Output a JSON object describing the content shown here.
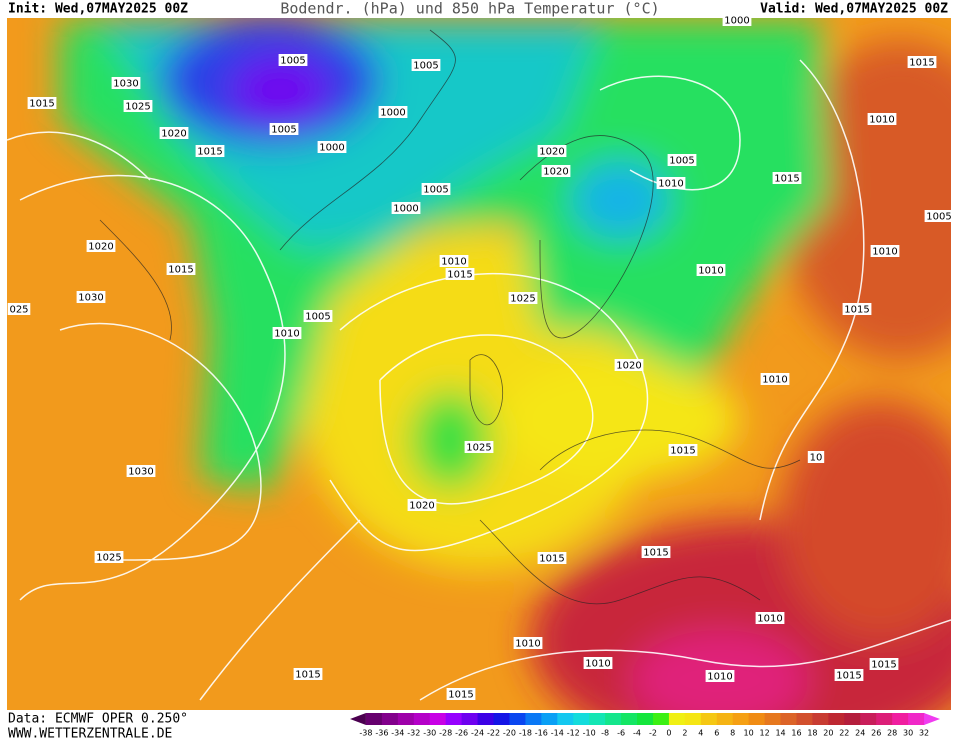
{
  "header": {
    "init": "Init: Wed,07MAY2025 00Z",
    "title": "Bodendr. (hPa) und 850 hPa Temperatur (°C)",
    "valid": "Valid: Wed,07MAY2025 00Z"
  },
  "footer": {
    "source": "Data: ECMWF OPER 0.250°",
    "website": "WWW.WETTERZENTRALE.DE"
  },
  "legend": {
    "labels": [
      "-38",
      "-36",
      "-34",
      "-32",
      "-30",
      "-28",
      "-26",
      "-24",
      "-22",
      "-20",
      "-18",
      "-16",
      "-14",
      "-12",
      "-10",
      "-8",
      "-6",
      "-4",
      "-2",
      "0",
      "2",
      "4",
      "6",
      "8",
      "10",
      "12",
      "14",
      "16",
      "18",
      "20",
      "22",
      "24",
      "26",
      "28",
      "30",
      "32"
    ],
    "colors": [
      "#4b0050",
      "#66006e",
      "#82008c",
      "#9e00aa",
      "#b400c8",
      "#c800e6",
      "#9600ff",
      "#6e00f0",
      "#3c00e6",
      "#1414e6",
      "#0a46f0",
      "#0a78f5",
      "#0aa0f5",
      "#14c8f0",
      "#14dcdc",
      "#14e6b4",
      "#14e68c",
      "#14e664",
      "#14e63c",
      "#3cf014",
      "#f0f014",
      "#f5e614",
      "#f5c814",
      "#f5b414",
      "#f5a014",
      "#f08c14",
      "#e6781e",
      "#dc6428",
      "#d2502d",
      "#c83c32",
      "#be2832",
      "#b41e3c",
      "#c81e5a",
      "#dc1e78",
      "#f01ea0",
      "#f028c8",
      "#f03cf0"
    ]
  },
  "isobars": [
    "1005",
    "1005",
    "1030",
    "1025",
    "1015",
    "1020",
    "1005",
    "1000",
    "1000",
    "1015",
    "1020",
    "1020",
    "1005",
    "1010",
    "1015",
    "1015",
    "1010",
    "1005",
    "1005",
    "1000",
    "1010",
    "1015",
    "1020",
    "1015",
    "1030",
    "025",
    "1025",
    "1005",
    "1010",
    "1010",
    "1010",
    "1015",
    "1020",
    "1010",
    "1025",
    "1015",
    "1030",
    "1020",
    "1025",
    "1015",
    "1015",
    "1010",
    "1010",
    "1010",
    "1010",
    "1015",
    "1015",
    "1015",
    "1015",
    "10",
    "1000"
  ]
}
